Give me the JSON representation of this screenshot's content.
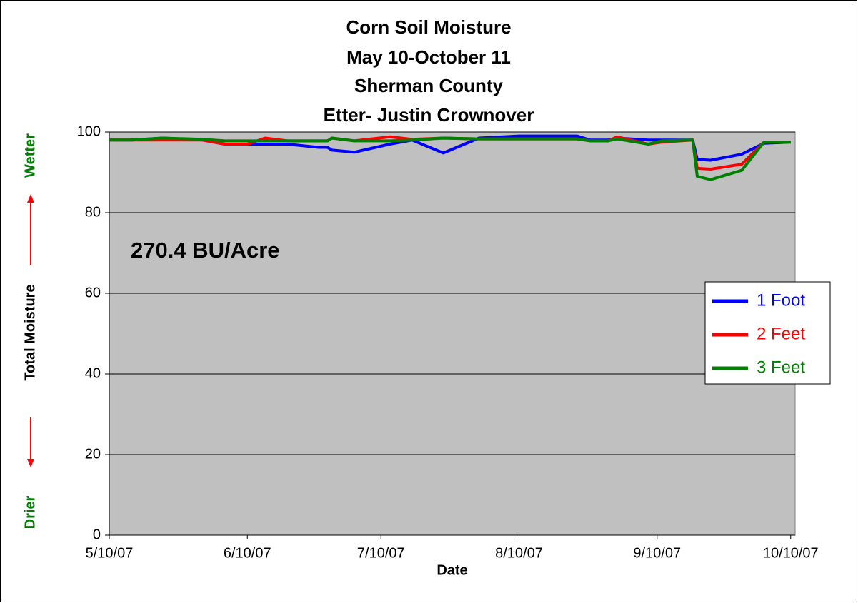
{
  "chart_data": {
    "type": "line",
    "title": [
      "Corn Soil Moisture",
      "May 10-October 11",
      "Sherman County",
      "Etter- Justin Crownover"
    ],
    "annotation": "270.4 BU/Acre",
    "x_label": "Date",
    "y_label": {
      "top": "Wetter",
      "middle": "Total Moisture",
      "bottom": "Drier"
    },
    "x": [
      "2007-05-10",
      "2007-05-15",
      "2007-05-22",
      "2007-05-31",
      "2007-06-05",
      "2007-06-10",
      "2007-06-14",
      "2007-06-19",
      "2007-06-26",
      "2007-06-28",
      "2007-06-29",
      "2007-07-04",
      "2007-07-12",
      "2007-07-17",
      "2007-07-24",
      "2007-08-01",
      "2007-08-10",
      "2007-08-23",
      "2007-08-26",
      "2007-08-30",
      "2007-09-01",
      "2007-09-08",
      "2007-09-11",
      "2007-09-18",
      "2007-09-19",
      "2007-09-22",
      "2007-09-29",
      "2007-10-04",
      "2007-10-10"
    ],
    "series": [
      {
        "name": "1 Foot",
        "color": "#0000ff",
        "values": [
          98,
          98,
          98.5,
          98,
          97,
          97,
          97,
          97,
          96.2,
          96.2,
          95.5,
          95,
          97,
          98,
          94.8,
          98.5,
          99,
          99,
          98,
          98,
          98.5,
          98,
          98,
          98,
          93.2,
          93,
          94.5,
          97.2,
          97.5
        ]
      },
      {
        "name": "2 Feet",
        "color": "#ff0000",
        "values": [
          98,
          98,
          98,
          98,
          97,
          97,
          98.5,
          97.8,
          97.8,
          97.8,
          98.5,
          97.8,
          98.8,
          98.2,
          98.5,
          98.3,
          98.3,
          98.3,
          97.8,
          97.8,
          98.8,
          97,
          97.5,
          98,
          91,
          90.8,
          92,
          97.5,
          97.5
        ]
      },
      {
        "name": "3 Feet",
        "color": "#008000",
        "values": [
          98,
          98,
          98.5,
          98.2,
          97.8,
          97.8,
          97.8,
          97.8,
          97.8,
          97.8,
          98.5,
          97.8,
          97.8,
          98,
          98.5,
          98.3,
          98.3,
          98.3,
          97.8,
          97.8,
          98.3,
          97,
          97.8,
          98,
          89,
          88.2,
          90.5,
          97.5,
          97.5
        ]
      }
    ],
    "xlim": [
      "2007-05-10",
      "2007-10-11"
    ],
    "xticks": [
      {
        "value": "2007-05-10",
        "label": "5/10/07"
      },
      {
        "value": "2007-06-10",
        "label": "6/10/07"
      },
      {
        "value": "2007-07-10",
        "label": "7/10/07"
      },
      {
        "value": "2007-08-10",
        "label": "8/10/07"
      },
      {
        "value": "2007-09-10",
        "label": "9/10/07"
      },
      {
        "value": "2007-10-10",
        "label": "10/10/07"
      }
    ],
    "ylim": [
      0,
      100
    ],
    "yticks": [
      0,
      20,
      40,
      60,
      80,
      100
    ],
    "grid": true,
    "legend": "right"
  }
}
